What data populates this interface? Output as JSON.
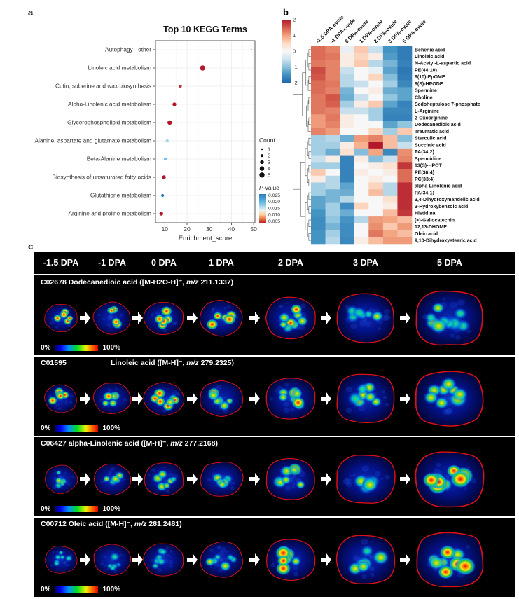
{
  "figure": {
    "panel_a_label": "a",
    "panel_b_label": "b",
    "panel_c_label": "c"
  },
  "colors": {
    "heatmap_high": "#b2182b",
    "heatmap_low": "#2166ac",
    "ovule_outline": "#dd1111",
    "dot_red": "#b2182b"
  },
  "chart_data": [
    {
      "type": "scatter",
      "title": "Top 10 KEGG Terms",
      "xlabel": "Enrichment_score",
      "xlim": [
        5.8,
        50.6
      ],
      "xticks": [
        10,
        20,
        30,
        40,
        50
      ],
      "grid": true,
      "legend": {
        "count_title": "Count",
        "count_items": [
          1,
          2,
          3,
          4,
          5
        ],
        "pvalue_title_p": "P",
        "pvalue_title_rest": "-value",
        "pvalue_ticks": [
          "0.025",
          "0.020",
          "0.015",
          "0.010",
          "0.005"
        ],
        "position": "right"
      },
      "points": [
        {
          "term": "Autophagy - other",
          "score": 49.0,
          "count": 1,
          "pvalue": 0.02
        },
        {
          "term": "Linoleic acid metabolism",
          "score": 27.0,
          "count": 5,
          "pvalue": 0.005
        },
        {
          "term": "Cutin, suberine and wax biosynthesis",
          "score": 17.0,
          "count": 2,
          "pvalue": 0.006
        },
        {
          "term": "Alpha-Linolenic acid metabolism",
          "score": 14.3,
          "count": 3,
          "pvalue": 0.005
        },
        {
          "term": "Glycerophospholipid metabolism",
          "score": 12.2,
          "count": 4,
          "pvalue": 0.005
        },
        {
          "term": "Alanine, aspartate and glutamate metabolism",
          "score": 11.1,
          "count": 2,
          "pvalue": 0.019
        },
        {
          "term": "Beta-Alanine metabolism",
          "score": 10.2,
          "count": 2,
          "pvalue": 0.021
        },
        {
          "term": "Biosynthesis of unsaturated fatty acids",
          "score": 9.6,
          "count": 3,
          "pvalue": 0.005
        },
        {
          "term": "Glutathione metabolism",
          "score": 9.0,
          "count": 2,
          "pvalue": 0.025
        },
        {
          "term": "Arginine and proline metabolism",
          "score": 8.4,
          "count": 3,
          "pvalue": 0.005
        }
      ]
    },
    {
      "type": "heatmap",
      "colorbar_ticks": [
        "2",
        "1",
        "0",
        "-1",
        "-2"
      ],
      "colorbar_range": [
        2,
        -2
      ],
      "columns": [
        "-1.5 DPA-ovule",
        "-1 DPA-ovule",
        "0 DPA-ovule",
        "1 DPA-ovule",
        "2 DPA-ovule",
        "3 DPA-ovule",
        "5 DPA-ovule"
      ],
      "rows": [
        "Behenic acid",
        "Linoleic acid",
        "N-Acetyl-L-aspartic acid",
        "PE(44:10)",
        "9(10)-EpOME",
        "9(S)-HPODE",
        "Spermine",
        "Choline",
        "Sedoheptulose 7-phosphate",
        "L-Arginine",
        "2-Oxoarginine",
        "Dodecanedioic acid",
        "Traumatic acid",
        "Sterculic acid",
        "Succinic acid",
        "PA(34:2)",
        "Spermidine",
        "13(S)-HPOT",
        "PE(36:4)",
        "PC(33:4)",
        "alpha-Linolenic acid",
        "PA(34:1)",
        "3,4-Dihydroxymandelic acid",
        "3-Hydroxybenzoic acid",
        "Histidinal",
        "(+)-Gallocatechin",
        "12,13-DHOME",
        "Oleic acid",
        "9,10-Dihydroxystearic acid"
      ],
      "values": [
        [
          1.2,
          1.0,
          -0.1,
          0.4,
          -0.3,
          -1.2,
          -1.6
        ],
        [
          1.2,
          1.1,
          0.1,
          0.3,
          0.1,
          -1.1,
          -1.6
        ],
        [
          1.1,
          1.0,
          0.1,
          0.4,
          -0.4,
          -0.8,
          -1.5
        ],
        [
          1.5,
          1.0,
          -0.3,
          0.0,
          -0.1,
          -1.0,
          -1.7
        ],
        [
          1.4,
          1.0,
          -0.4,
          0.0,
          0.3,
          -0.7,
          -1.6
        ],
        [
          1.2,
          1.1,
          -0.4,
          -0.3,
          0.0,
          -0.5,
          -1.4
        ],
        [
          1.2,
          1.0,
          -0.8,
          0.0,
          0.1,
          -0.9,
          -1.0
        ],
        [
          1.1,
          1.4,
          -0.9,
          -0.3,
          0.0,
          -0.6,
          -1.0
        ],
        [
          1.1,
          1.3,
          -0.5,
          0.1,
          0.4,
          -1.0,
          -1.5
        ],
        [
          1.1,
          1.0,
          -0.3,
          -0.3,
          -0.5,
          -1.4,
          -1.4
        ],
        [
          0.8,
          1.1,
          0.1,
          0.0,
          -0.5,
          -1.5,
          -1.5
        ],
        [
          0.8,
          1.0,
          0.1,
          0.0,
          0.0,
          -1.0,
          -0.6
        ],
        [
          1.0,
          0.8,
          0.0,
          0.0,
          0.3,
          -0.5,
          0.4
        ],
        [
          -0.5,
          -0.4,
          -0.9,
          0.8,
          1.0,
          0.5,
          -0.7
        ],
        [
          -0.5,
          -0.5,
          0.1,
          0.6,
          2.0,
          0.5,
          -0.3
        ],
        [
          -0.5,
          -0.9,
          0.2,
          -0.7,
          0.7,
          -1.4,
          0.9
        ],
        [
          -0.3,
          0.1,
          -1.5,
          0.1,
          -0.7,
          -0.3,
          1.0
        ],
        [
          -0.5,
          -0.5,
          -1.5,
          0.0,
          0.1,
          0.2,
          1.7
        ],
        [
          0.4,
          0.0,
          -1.5,
          0.1,
          0.0,
          0.1,
          1.2
        ],
        [
          0.1,
          -0.4,
          -1.5,
          0.0,
          0.1,
          0.0,
          1.2
        ],
        [
          -0.5,
          -0.4,
          -1.0,
          0.0,
          0.3,
          -0.4,
          1.8
        ],
        [
          -0.5,
          -0.8,
          -0.9,
          0.0,
          0.5,
          -0.4,
          1.8
        ],
        [
          -1.0,
          -0.8,
          -0.4,
          0.0,
          0.0,
          0.2,
          1.8
        ],
        [
          -1.0,
          -0.5,
          -1.3,
          0.3,
          0.0,
          0.1,
          1.8
        ],
        [
          -1.2,
          -0.5,
          -0.9,
          0.0,
          0.0,
          0.5,
          1.7
        ],
        [
          -1.3,
          -0.6,
          -1.2,
          -0.4,
          0.8,
          0.7,
          0.5
        ],
        [
          -1.3,
          -0.8,
          -1.3,
          0.0,
          0.9,
          0.4,
          0.8
        ],
        [
          -1.2,
          -0.5,
          -1.3,
          0.0,
          1.1,
          0.7,
          0.5
        ],
        [
          -1.2,
          -0.4,
          -1.4,
          0.1,
          0.5,
          0.8,
          0.8
        ]
      ]
    }
  ],
  "panel_c": {
    "stages": [
      "-1.5 DPA",
      "-1 DPA",
      "0 DPA",
      "1 DPA",
      "2 DPA",
      "3 DPA",
      "5 DPA"
    ],
    "scalebar": {
      "min": "0%",
      "max": "100%"
    },
    "sections": [
      {
        "code": "C02678",
        "name": "Dodecanedioic acid",
        "adduct": "([M-H2O-H]⁻,",
        "mz_label": "m/z",
        "mz_value": "211.1337)",
        "wide_gap": false,
        "intensities": [
          3,
          3,
          2.8,
          3,
          2.0,
          1.2,
          1.6
        ]
      },
      {
        "code": "C01595",
        "name": "Linoleic acid",
        "adduct": "([M-H]⁻,",
        "mz_label": "m/z",
        "mz_value": "279.2325)",
        "wide_gap": true,
        "intensities": [
          3,
          2.4,
          2.8,
          2.0,
          2.4,
          1.6,
          1.8
        ]
      },
      {
        "code": "C06427",
        "name": "alpha-Linolenic acid",
        "adduct": "([M-H]⁻,",
        "mz_label": "m/z",
        "mz_value": "277.2168)",
        "wide_gap": false,
        "intensities": [
          2.0,
          1.8,
          1.8,
          1.8,
          2.2,
          1.8,
          3
        ]
      },
      {
        "code": "C00712",
        "name": "Oleic acid",
        "adduct": "([M-H]⁻,",
        "mz_label": "m/z",
        "mz_value": "281.2481)",
        "wide_gap": false,
        "intensities": [
          0.8,
          0.8,
          1.0,
          1.2,
          3,
          2.0,
          2.6
        ]
      }
    ]
  }
}
